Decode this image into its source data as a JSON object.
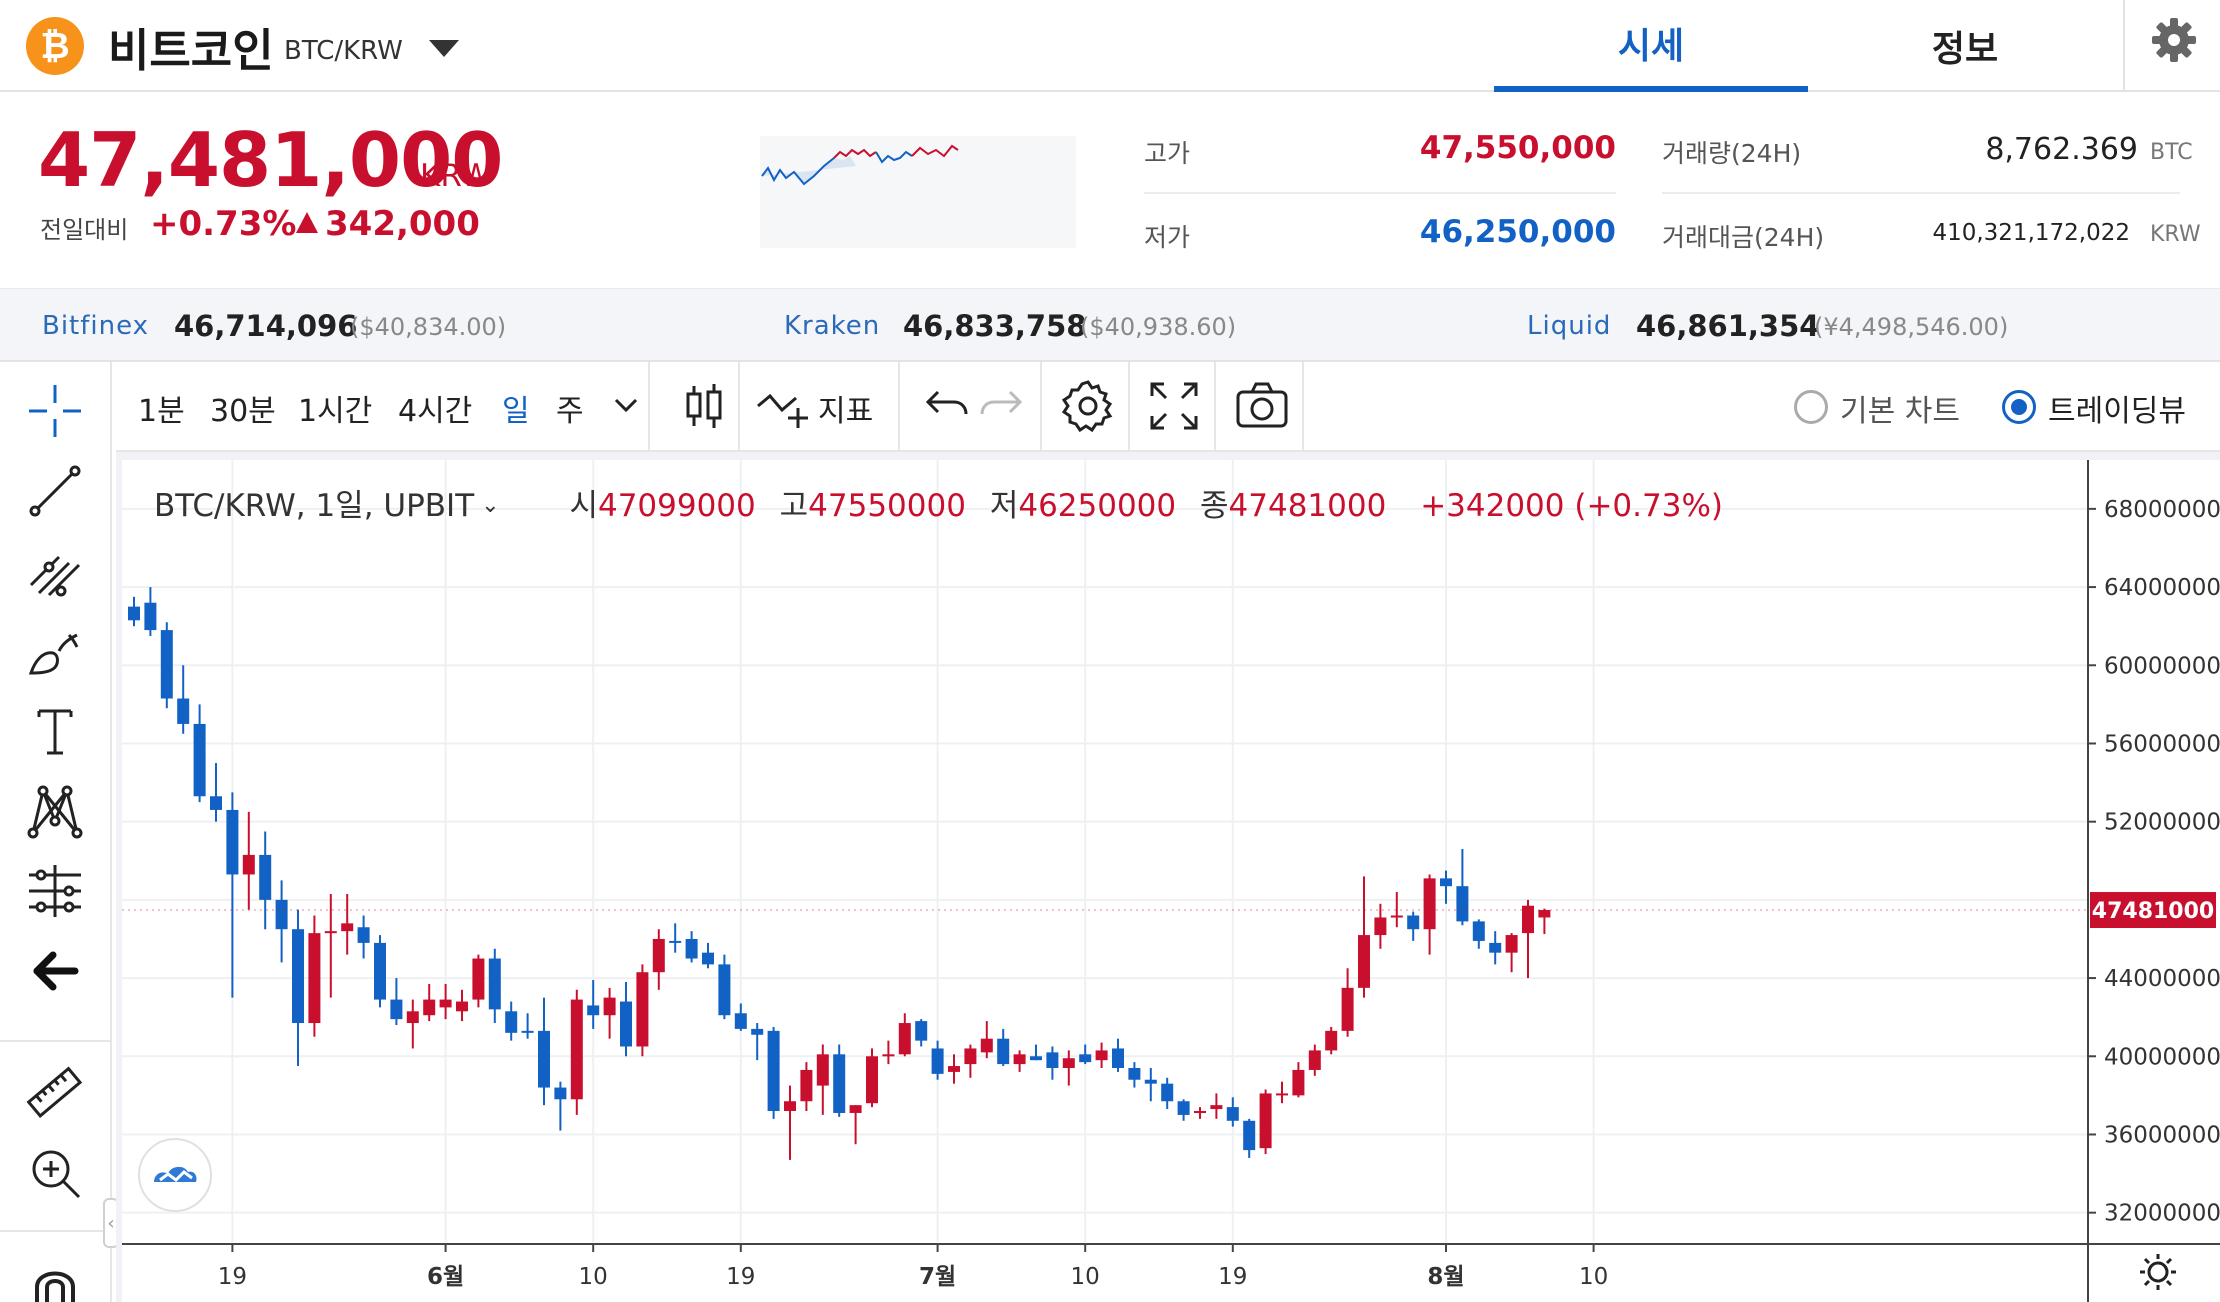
{
  "header": {
    "coin_symbol_glyph": "₿",
    "coin_name": "비트코인",
    "pair": "BTC/KRW",
    "tabs": [
      {
        "label": "시세",
        "active": true
      },
      {
        "label": "정보",
        "active": false
      }
    ],
    "accent_color": "#1261c4"
  },
  "summary": {
    "price": "47,481,000",
    "price_unit": "KRW",
    "change_label": "전일대비",
    "change_pct": "+0.73%",
    "change_amount": "342,000",
    "high_label": "고가",
    "high_value": "47,550,000",
    "low_label": "저가",
    "low_value": "46,250,000",
    "volume_label": "거래량(24H)",
    "volume_value": "8,762.369",
    "volume_unit": "BTC",
    "amount_label": "거래대금(24H)",
    "amount_value": "410,321,172,022",
    "amount_unit": "KRW",
    "up_color": "#c8102e",
    "down_color": "#1261c4"
  },
  "exchanges": [
    {
      "name": "Bitfinex",
      "price": "46,714,096",
      "sub": "($40,834.00)"
    },
    {
      "name": "Kraken",
      "price": "46,833,758",
      "sub": "($40,938.60)"
    },
    {
      "name": "Liquid",
      "price": "46,861,354",
      "sub": "(¥4,498,546.00)"
    }
  ],
  "left_tools": [
    "crosshair-icon",
    "trend-line-icon",
    "fib-tool-icon",
    "brush-icon",
    "text-icon",
    "pattern-icon",
    "measure-icon",
    "back-arrow-icon",
    "ruler-icon",
    "zoom-in-icon",
    "magnet-icon"
  ],
  "toolbar": {
    "intervals": [
      "1분",
      "30분",
      "1시간",
      "4시간",
      "일",
      "주"
    ],
    "active_interval": "일",
    "indicators_label": "지표",
    "basic_chart_label": "기본 차트",
    "tradingview_label": "트레이딩뷰",
    "selected_view": "트레이딩뷰"
  },
  "legend": {
    "symbol": "BTC/KRW, 1일, UPBIT",
    "open_label": "시",
    "open": "47099000",
    "high_label": "고",
    "high": "47550000",
    "low_label": "저",
    "low": "46250000",
    "close_label": "종",
    "close": "47481000",
    "change": "+342000 (+0.73%)"
  },
  "chart_data": {
    "type": "candlestick",
    "ylim": [
      30500000,
      70500000
    ],
    "y_ticks": [
      68000000,
      64000000,
      60000000,
      56000000,
      52000000,
      48000000,
      44000000,
      40000000,
      36000000,
      32000000
    ],
    "y_tick_labels": [
      "68000000",
      "64000000",
      "60000000",
      "56000000",
      "52000000",
      "44000000",
      "40000000",
      "36000000",
      "32000000"
    ],
    "current_price": 47481000,
    "current_price_label": "47481000",
    "x_ticks": [
      {
        "label": "19",
        "index": 6,
        "bold": false
      },
      {
        "label": "6월",
        "index": 19,
        "bold": true
      },
      {
        "label": "10",
        "index": 28,
        "bold": false
      },
      {
        "label": "19",
        "index": 37,
        "bold": false
      },
      {
        "label": "7월",
        "index": 49,
        "bold": true
      },
      {
        "label": "10",
        "index": 58,
        "bold": false
      },
      {
        "label": "19",
        "index": 67,
        "bold": false
      },
      {
        "label": "8월",
        "index": 80,
        "bold": true
      },
      {
        "label": "10",
        "index": 89,
        "bold": false
      }
    ],
    "ohlc": [
      [
        63000000,
        63500000,
        62000000,
        62300000
      ],
      [
        63200000,
        64000000,
        61500000,
        61800000
      ],
      [
        61800000,
        62200000,
        57800000,
        58300000
      ],
      [
        58300000,
        60000000,
        56500000,
        57000000
      ],
      [
        57000000,
        58000000,
        53000000,
        53300000
      ],
      [
        53300000,
        55000000,
        52000000,
        52600000
      ],
      [
        52600000,
        53500000,
        43000000,
        49300000
      ],
      [
        49300000,
        52500000,
        47500000,
        50300000
      ],
      [
        50300000,
        51500000,
        46500000,
        48000000
      ],
      [
        48000000,
        49000000,
        44800000,
        46500000
      ],
      [
        46500000,
        47500000,
        39500000,
        41700000
      ],
      [
        41700000,
        47200000,
        41000000,
        46300000
      ],
      [
        46300000,
        48300000,
        43000000,
        46400000
      ],
      [
        46400000,
        48300000,
        45200000,
        46800000
      ],
      [
        46600000,
        47200000,
        45000000,
        45800000
      ],
      [
        45800000,
        46200000,
        42500000,
        42900000
      ],
      [
        42900000,
        44000000,
        41600000,
        41900000
      ],
      [
        41700000,
        42900000,
        40400000,
        42300000
      ],
      [
        42100000,
        43700000,
        41800000,
        42900000
      ],
      [
        42500000,
        43700000,
        41900000,
        42900000
      ],
      [
        42300000,
        43400000,
        41800000,
        42800000
      ],
      [
        42900000,
        45200000,
        42500000,
        45000000
      ],
      [
        45000000,
        45500000,
        41700000,
        42400000
      ],
      [
        42300000,
        42800000,
        40800000,
        41200000
      ],
      [
        41300000,
        42200000,
        40900000,
        41200000
      ],
      [
        41300000,
        43000000,
        37500000,
        38400000
      ],
      [
        38400000,
        38700000,
        36200000,
        37800000
      ],
      [
        37800000,
        43400000,
        37000000,
        42900000
      ],
      [
        42600000,
        43900000,
        41400000,
        42100000
      ],
      [
        42100000,
        43500000,
        40900000,
        43000000
      ],
      [
        42800000,
        43800000,
        40000000,
        40500000
      ],
      [
        40500000,
        44700000,
        40000000,
        44300000
      ],
      [
        44300000,
        46500000,
        43400000,
        46000000
      ],
      [
        45900000,
        46800000,
        45300000,
        45800000
      ],
      [
        46000000,
        46400000,
        44800000,
        45000000
      ],
      [
        45300000,
        45800000,
        44500000,
        44700000
      ],
      [
        44700000,
        45200000,
        41900000,
        42100000
      ],
      [
        42200000,
        42700000,
        41300000,
        41400000
      ],
      [
        41400000,
        41700000,
        39800000,
        41100000
      ],
      [
        41300000,
        41500000,
        36800000,
        37200000
      ],
      [
        37200000,
        38500000,
        34700000,
        37700000
      ],
      [
        37700000,
        39700000,
        37200000,
        39300000
      ],
      [
        38500000,
        40600000,
        37000000,
        40100000
      ],
      [
        40100000,
        40600000,
        36900000,
        37100000
      ],
      [
        37100000,
        37500000,
        35500000,
        37500000
      ],
      [
        37600000,
        40400000,
        37400000,
        40000000
      ],
      [
        40000000,
        40800000,
        39600000,
        40100000
      ],
      [
        40100000,
        42200000,
        40000000,
        41700000
      ],
      [
        41800000,
        41900000,
        40500000,
        40800000
      ],
      [
        40400000,
        40800000,
        38800000,
        39100000
      ],
      [
        39200000,
        40100000,
        38600000,
        39500000
      ],
      [
        39600000,
        40600000,
        38900000,
        40400000
      ],
      [
        40200000,
        41800000,
        39900000,
        40900000
      ],
      [
        40900000,
        41400000,
        39500000,
        39600000
      ],
      [
        39600000,
        40300000,
        39200000,
        40100000
      ],
      [
        40000000,
        40600000,
        39800000,
        39800000
      ],
      [
        40200000,
        40500000,
        38800000,
        39400000
      ],
      [
        39400000,
        40300000,
        38500000,
        39900000
      ],
      [
        40100000,
        40600000,
        39600000,
        39700000
      ],
      [
        39800000,
        40700000,
        39400000,
        40300000
      ],
      [
        40400000,
        40900000,
        39200000,
        39400000
      ],
      [
        39400000,
        39700000,
        38400000,
        38800000
      ],
      [
        38800000,
        39400000,
        37700000,
        38600000
      ],
      [
        38600000,
        38900000,
        37300000,
        37700000
      ],
      [
        37700000,
        37800000,
        36700000,
        37000000
      ],
      [
        37100000,
        37400000,
        36800000,
        37200000
      ],
      [
        37300000,
        38100000,
        36800000,
        37500000
      ],
      [
        37400000,
        37900000,
        36400000,
        36700000
      ],
      [
        36700000,
        36800000,
        34800000,
        35200000
      ],
      [
        35300000,
        38300000,
        35000000,
        38100000
      ],
      [
        38000000,
        38700000,
        37600000,
        38100000
      ],
      [
        38000000,
        39700000,
        37900000,
        39300000
      ],
      [
        39300000,
        40600000,
        39000000,
        40300000
      ],
      [
        40300000,
        41500000,
        40100000,
        41300000
      ],
      [
        41300000,
        44500000,
        41000000,
        43500000
      ],
      [
        43500000,
        49200000,
        43000000,
        46200000
      ],
      [
        46200000,
        47800000,
        45500000,
        47100000
      ],
      [
        47100000,
        48400000,
        46600000,
        47200000
      ],
      [
        47200000,
        47400000,
        45900000,
        46500000
      ],
      [
        46500000,
        49300000,
        45200000,
        49100000
      ],
      [
        49100000,
        49500000,
        47800000,
        48700000
      ],
      [
        48700000,
        50600000,
        46700000,
        46900000
      ],
      [
        46900000,
        47000000,
        45500000,
        45900000
      ],
      [
        45800000,
        46400000,
        44700000,
        45300000
      ],
      [
        45300000,
        46300000,
        44300000,
        46200000
      ],
      [
        46300000,
        48000000,
        44000000,
        47700000
      ],
      [
        47099000,
        47550000,
        46250000,
        47481000
      ]
    ]
  }
}
